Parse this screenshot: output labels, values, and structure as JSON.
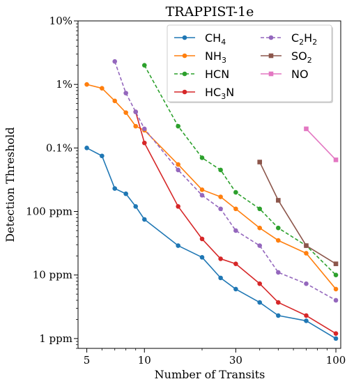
{
  "chart_data": {
    "type": "line",
    "title": "TRAPPIST-1e",
    "xlabel": "Number of Transits",
    "ylabel": "Detection Threshold",
    "xscale": "log",
    "yscale": "log",
    "xlim": [
      4.5,
      106
    ],
    "ylim": [
      0.7,
      100000
    ],
    "x_ticks": [
      {
        "value": 5,
        "label": "5"
      },
      {
        "value": 10,
        "label": "10"
      },
      {
        "value": 30,
        "label": "30"
      },
      {
        "value": 100,
        "label": "100"
      }
    ],
    "y_ticks": [
      {
        "value": 1,
        "label": "1 ppm"
      },
      {
        "value": 10,
        "label": "10 ppm"
      },
      {
        "value": 100,
        "label": "100 ppm"
      },
      {
        "value": 1000,
        "label": "0.1%"
      },
      {
        "value": 10000,
        "label": "1%"
      },
      {
        "value": 100000,
        "label": "10%"
      }
    ],
    "grid": false,
    "legend_position": "top-right",
    "series": [
      {
        "name": "CH₄",
        "legend_main": "CH",
        "legend_sub": "4",
        "color": "#1f77b4",
        "style": "solid",
        "marker": "circle",
        "points": [
          [
            5,
            1000
          ],
          [
            6,
            750
          ],
          [
            7,
            230
          ],
          [
            8,
            190
          ],
          [
            9,
            120
          ],
          [
            10,
            75
          ],
          [
            15,
            29
          ],
          [
            20,
            19
          ],
          [
            25,
            9
          ],
          [
            30,
            6
          ],
          [
            40,
            3.7
          ],
          [
            50,
            2.3
          ],
          [
            70,
            1.9
          ],
          [
            100,
            1.0
          ]
        ]
      },
      {
        "name": "NH₃",
        "legend_main": "NH",
        "legend_sub": "3",
        "color": "#ff7f0e",
        "style": "solid",
        "marker": "circle",
        "points": [
          [
            5,
            10000
          ],
          [
            6,
            8700
          ],
          [
            7,
            5500
          ],
          [
            8,
            3600
          ],
          [
            9,
            2200
          ],
          [
            10,
            1900
          ],
          [
            15,
            550
          ],
          [
            20,
            220
          ],
          [
            25,
            170
          ],
          [
            30,
            110
          ],
          [
            40,
            55
          ],
          [
            50,
            35
          ],
          [
            70,
            22
          ],
          [
            100,
            6
          ]
        ]
      },
      {
        "name": "HCN",
        "legend_main": "HCN",
        "legend_sub": "",
        "color": "#2ca02c",
        "style": "dashed",
        "marker": "circle",
        "points": [
          [
            10,
            20000
          ],
          [
            15,
            2200
          ],
          [
            20,
            700
          ],
          [
            25,
            450
          ],
          [
            30,
            200
          ],
          [
            40,
            110
          ],
          [
            50,
            55
          ],
          [
            70,
            29
          ],
          [
            100,
            10
          ]
        ]
      },
      {
        "name": "HC₃N",
        "legend_main": "HC",
        "legend_sub": "3",
        "legend_tail": "N",
        "color": "#d62728",
        "style": "solid",
        "marker": "circle",
        "points": [
          [
            9,
            3700
          ],
          [
            10,
            1200
          ],
          [
            15,
            120
          ],
          [
            20,
            37
          ],
          [
            25,
            18
          ],
          [
            30,
            15
          ],
          [
            40,
            7.3
          ],
          [
            50,
            3.7
          ],
          [
            70,
            2.3
          ],
          [
            100,
            1.2
          ]
        ]
      },
      {
        "name": "C₂H₂",
        "legend_main": "C",
        "legend_sub": "2",
        "legend_tail": "H",
        "legend_sub2": "2",
        "color": "#9467bd",
        "style": "dashed",
        "marker": "circle",
        "points": [
          [
            7,
            23000
          ],
          [
            8,
            7300
          ],
          [
            9,
            3700
          ],
          [
            10,
            2000
          ],
          [
            15,
            450
          ],
          [
            20,
            180
          ],
          [
            25,
            110
          ],
          [
            30,
            50
          ],
          [
            40,
            29
          ],
          [
            50,
            11
          ],
          [
            70,
            7.3
          ],
          [
            100,
            4
          ]
        ]
      },
      {
        "name": "SO₂",
        "legend_main": "SO",
        "legend_sub": "2",
        "color": "#8c564b",
        "style": "solid",
        "marker": "square",
        "points": [
          [
            40,
            600
          ],
          [
            50,
            150
          ],
          [
            70,
            29
          ],
          [
            100,
            15
          ]
        ]
      },
      {
        "name": "NO",
        "legend_main": "NO",
        "legend_sub": "",
        "color": "#e377c2",
        "style": "solid",
        "marker": "square",
        "points": [
          [
            70,
            2000
          ],
          [
            100,
            650
          ]
        ]
      }
    ]
  }
}
